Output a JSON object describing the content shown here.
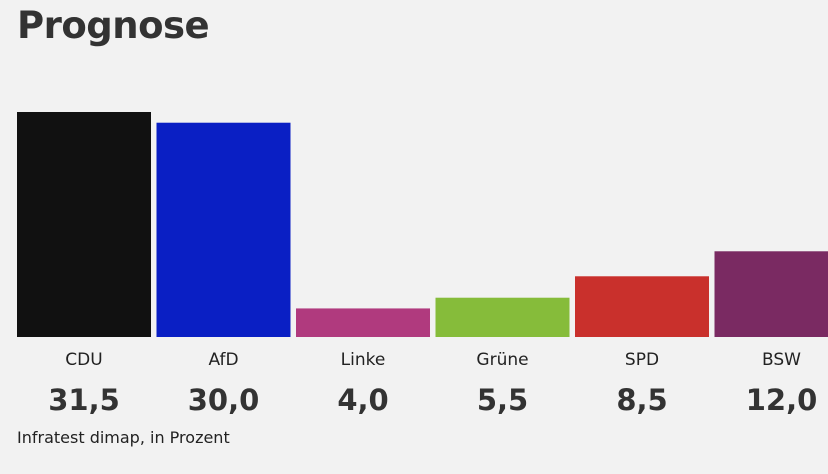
{
  "chart_data": {
    "type": "bar",
    "title": "Prognose",
    "source": "Infratest dimap, in Prozent",
    "categories": [
      "CDU",
      "AfD",
      "Linke",
      "Grüne",
      "SPD",
      "BSW"
    ],
    "values": [
      31.5,
      30.0,
      4.0,
      5.5,
      8.5,
      12.0
    ],
    "value_labels": [
      "31,5",
      "30,0",
      "4,0",
      "5,5",
      "8,5",
      "12,0"
    ],
    "colors": [
      "#111111",
      "#0a1fc4",
      "#b03a7e",
      "#86bc3a",
      "#c9302c",
      "#7a2a62"
    ],
    "ylim": [
      0,
      31.5
    ],
    "grid": false
  }
}
